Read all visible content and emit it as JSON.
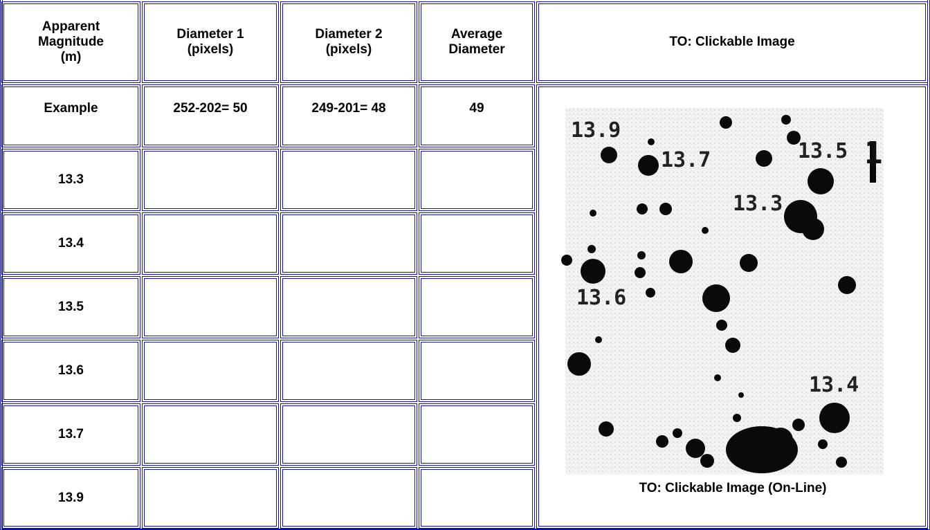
{
  "table": {
    "header": [
      "Apparent Magnitude (m)",
      "Diameter 1 (pixels)",
      "Diameter 2 (pixels)",
      "Average Diameter",
      "TO: Clickable Image"
    ],
    "example": [
      "Example",
      "252-202= 50",
      "249-201= 48",
      "49"
    ],
    "magnitudes": [
      "13.3",
      "13.4",
      "13.5",
      "13.6",
      "13.7",
      "13.9"
    ]
  },
  "image": {
    "labels": [
      "13.9",
      "13.7",
      "13.5",
      "1",
      "13.3",
      "13.6",
      "13.4"
    ],
    "caption": "TO: Clickable Image (On-Line)"
  }
}
